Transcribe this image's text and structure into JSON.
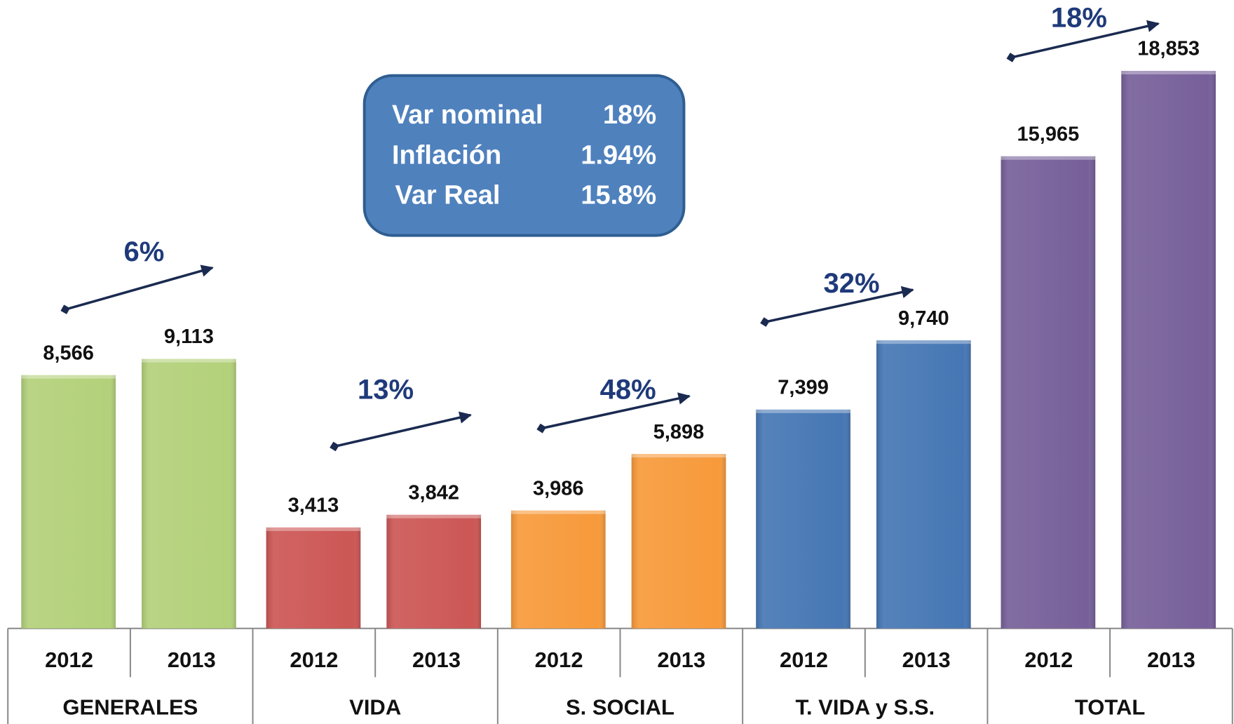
{
  "chart_data": {
    "type": "bar",
    "groups": [
      {
        "name": "GENERALES",
        "color": "#b3d17a",
        "categories": [
          "2012",
          "2013"
        ],
        "values": [
          8566,
          9113
        ],
        "value_labels": [
          "8,566",
          "9,113"
        ],
        "change": "6%"
      },
      {
        "name": "VIDA",
        "color": "#cc5755",
        "categories": [
          "2012",
          "2013"
        ],
        "values": [
          3413,
          3842
        ],
        "value_labels": [
          "3,413",
          "3,842"
        ],
        "change": "13%"
      },
      {
        "name": "S. SOCIAL",
        "color": "#f79a3b",
        "categories": [
          "2012",
          "2013"
        ],
        "values": [
          3986,
          5898
        ],
        "value_labels": [
          "3,986",
          "5,898"
        ],
        "change": "48%"
      },
      {
        "name": "T. VIDA y S.S.",
        "color": "#4677b4",
        "categories": [
          "2012",
          "2013"
        ],
        "values": [
          7399,
          9740
        ],
        "value_labels": [
          "7,399",
          "9,740"
        ],
        "change": "32%"
      },
      {
        "name": "TOTAL",
        "color": "#77609a",
        "categories": [
          "2012",
          "2013"
        ],
        "values": [
          15965,
          18853
        ],
        "value_labels": [
          "15,965",
          "18,853"
        ],
        "change": "18%"
      }
    ],
    "summary": [
      {
        "label": "Var nominal",
        "value": "18%"
      },
      {
        "label": "Inflación",
        "value": "1.94%"
      },
      {
        "label": "Var Real",
        "value": "15.8%"
      }
    ]
  }
}
